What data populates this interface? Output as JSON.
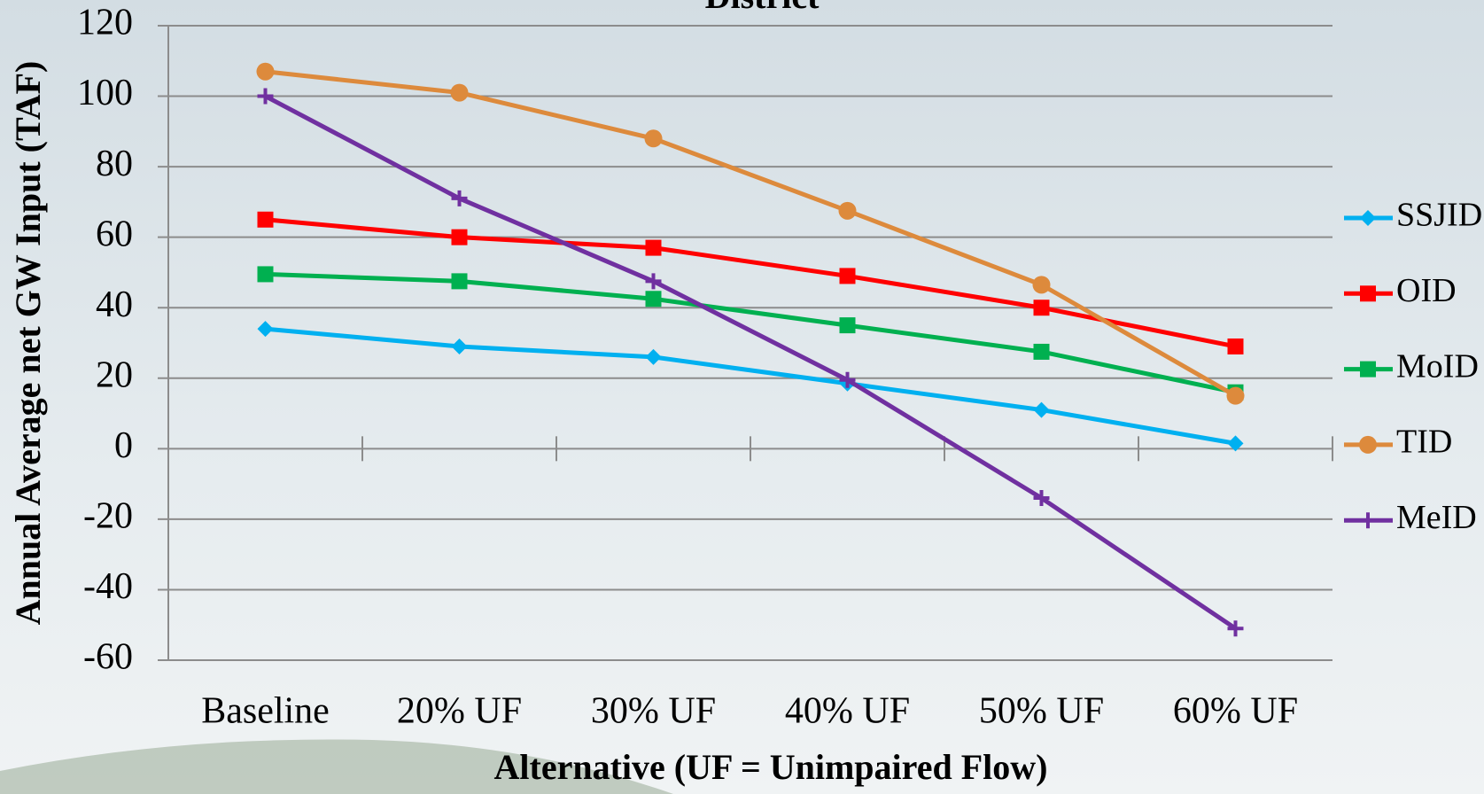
{
  "chart_data": {
    "type": "line",
    "title": "District",
    "x_label": "Alternative (UF = Unimpaired Flow)",
    "y_label": "Annual Average net GW Input (TAF)",
    "categories": [
      "Baseline",
      "20% UF",
      "30% UF",
      "40% UF",
      "50% UF",
      "60% UF"
    ],
    "series": [
      {
        "name": "SSJID",
        "color": "#00b0f0",
        "marker": "diamond",
        "values": [
          34,
          29,
          26,
          18.5,
          11,
          1.5
        ]
      },
      {
        "name": "OID",
        "color": "#ff0000",
        "marker": "square",
        "values": [
          65,
          60,
          57,
          49,
          40,
          29
        ]
      },
      {
        "name": "MoID",
        "color": "#00b050",
        "marker": "square",
        "values": [
          49.5,
          47.5,
          42.5,
          35,
          27.5,
          16
        ]
      },
      {
        "name": "TID",
        "color": "#dd8a3c",
        "marker": "circle",
        "values": [
          107,
          101,
          88,
          67.5,
          46.5,
          15
        ]
      },
      {
        "name": "MeID",
        "color": "#7030a0",
        "marker": "plus",
        "values": [
          100,
          71,
          47.5,
          19.5,
          -14,
          -51
        ]
      }
    ],
    "ylim": [
      -60,
      120
    ],
    "yticks": [
      -60,
      -40,
      -20,
      0,
      20,
      40,
      60,
      80,
      100,
      120
    ],
    "grid": true,
    "legend": "right"
  }
}
